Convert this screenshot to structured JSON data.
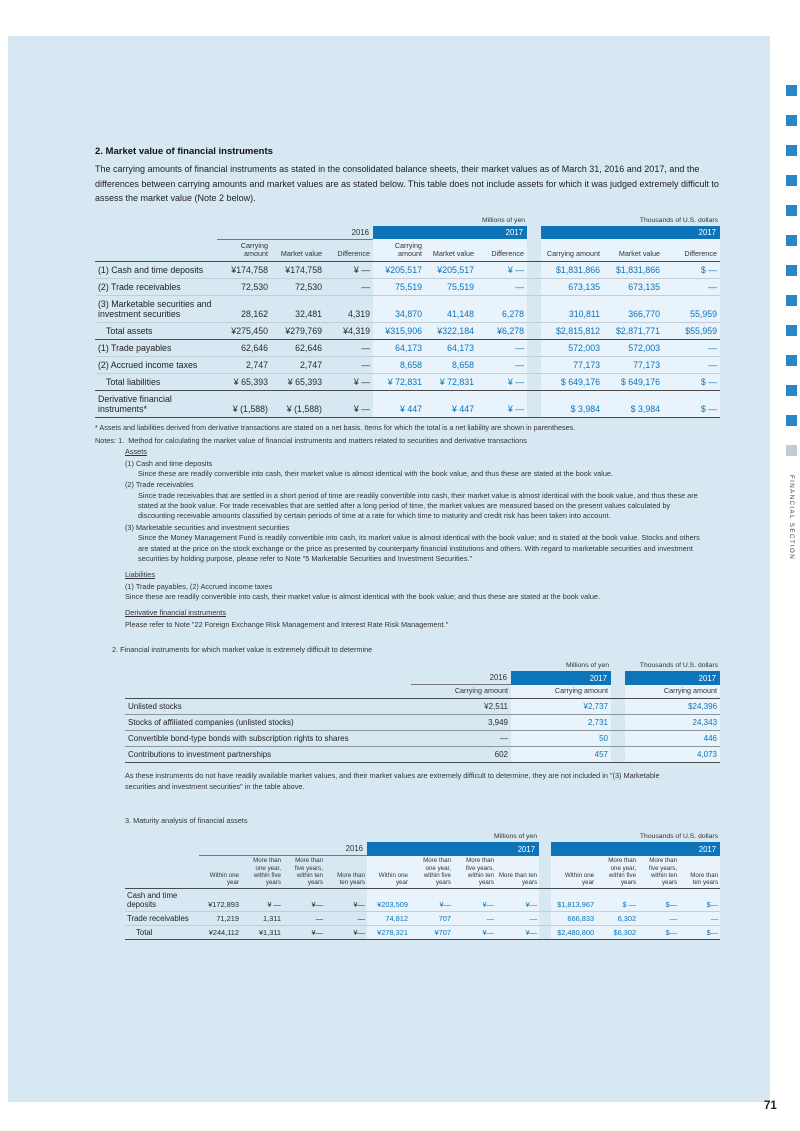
{
  "page": {
    "number": "71",
    "side_tab": "FINANCIAL SECTION"
  },
  "section": {
    "heading": "2. Market value of financial instruments",
    "intro": "The carrying amounts of financial instruments as stated in the consolidated balance sheets, their market values as of March 31, 2016 and 2017, and the differences between carrying amounts and market values are as stated below. This table does not include assets for which it was judged extremely difficult to assess the market value (Note 2 below)."
  },
  "table1": {
    "unit_yen": "Millions of yen",
    "unit_usd": "Thousands of U.S. dollars",
    "year_2016": "2016",
    "year_2017": "2017",
    "col_carrying": "Carrying amount",
    "col_market": "Market value",
    "col_difference": "Difference",
    "rows": [
      {
        "label": "(1) Cash and time deposits",
        "cells": [
          "¥174,758",
          "¥174,758",
          "¥ —",
          "¥205,517",
          "¥205,517",
          "¥ —",
          "$1,831,866",
          "$1,831,866",
          "$ —"
        ]
      },
      {
        "label": "(2) Trade receivables",
        "cells": [
          "72,530",
          "72,530",
          "—",
          "75,519",
          "75,519",
          "—",
          "673,135",
          "673,135",
          "—"
        ]
      },
      {
        "label": "(3) Marketable securities and investment securities",
        "cells": [
          "28,162",
          "32,481",
          "4,319",
          "34,870",
          "41,148",
          "6,278",
          "310,811",
          "366,770",
          "55,959"
        ]
      },
      {
        "label": "Total assets",
        "cls": "total",
        "ind": true,
        "cells": [
          "¥275,450",
          "¥279,769",
          "¥4,319",
          "¥315,906",
          "¥322,184",
          "¥6,278",
          "$2,815,812",
          "$2,871,771",
          "$55,959"
        ]
      },
      {
        "label": "(1) Trade payables",
        "cells": [
          "62,646",
          "62,646",
          "—",
          "64,173",
          "64,173",
          "—",
          "572,003",
          "572,003",
          "—"
        ]
      },
      {
        "label": "(2) Accrued income taxes",
        "cells": [
          "2,747",
          "2,747",
          "—",
          "8,658",
          "8,658",
          "—",
          "77,173",
          "77,173",
          "—"
        ]
      },
      {
        "label": "Total liabilities",
        "cls": "total",
        "ind": true,
        "cells": [
          "¥ 65,393",
          "¥ 65,393",
          "¥ —",
          "¥ 72,831",
          "¥ 72,831",
          "¥ —",
          "$ 649,176",
          "$ 649,176",
          "$ —"
        ]
      },
      {
        "label": "Derivative financial instruments*",
        "cls": "last",
        "cells": [
          "¥ (1,588)",
          "¥ (1,588)",
          "¥ —",
          "¥ 447",
          "¥ 447",
          "¥ —",
          "$ 3,984",
          "$ 3,984",
          "$ —"
        ]
      }
    ]
  },
  "notes": {
    "footnote": "* Assets and liabilities derived from derivative transactions are stated on a net basis. Items for which the total is a net liability are shown in parentheses.",
    "note1_prefix": "Notes: 1.",
    "note1_title": "Method for calculating the market value of financial instruments and matters related to securities and derivative transactions",
    "assets_heading": "Assets",
    "asset_items": [
      {
        "head": "(1) Cash and time deposits",
        "body": "Since these are readily convertible into cash, their market value is almost identical with the book value, and thus these are stated at the book value."
      },
      {
        "head": "(2) Trade receivables",
        "body": "Since trade receivables that are settled in a short period of time are readily convertible into cash, their market value is almost identical with the book value, and thus these are stated at the book value. For trade receivables that are settled after a long period of time, the market values are measured based on the present values calculated by discounting receivable amounts classified by certain periods of time at a rate for which time to maturity and credit risk has been taken into account."
      },
      {
        "head": "(3) Marketable securities and investment securities",
        "body": "Since the Money Management Fund is readily convertible into cash, its market value is almost identical with the book value; and is stated at the book value. Stocks and others are stated at the price on the stock exchange or the price as presented by counterparty financial institutions and others. With regard to marketable securities and investment securities by holding purpose, please refer to Note \"5 Marketable Securities and Investment Securities.\""
      }
    ],
    "liabilities_heading": "Liabilities",
    "liabilities_sub": "(1) Trade payables, (2) Accrued income taxes",
    "liabilities_body": "Since these are readily convertible into cash, their market value is almost identical with the book value; and thus these are stated at the book value.",
    "derivative_heading": "Derivative financial instruments",
    "derivative_body": "Please refer to Note \"22 Foreign Exchange Risk Management and Interest Rate Risk Management.\""
  },
  "table2": {
    "title": "2. Financial instruments for which market value is extremely difficult to determine",
    "unit_yen": "Millions of yen",
    "unit_usd": "Thousands of U.S. dollars",
    "year_2016": "2016",
    "year_2017": "2017",
    "col_carrying": "Carrying amount",
    "rows": [
      {
        "label": "Unlisted stocks",
        "cells": [
          "¥2,511",
          "¥2,737",
          "$24,396"
        ]
      },
      {
        "label": "Stocks of affiliated companies (unlisted stocks)",
        "cells": [
          "3,949",
          "2,731",
          "24,343"
        ]
      },
      {
        "label": "Convertible bond-type bonds with subscription rights to shares",
        "cells": [
          "—",
          "50",
          "446"
        ]
      },
      {
        "label": "Contributions to investment partnerships",
        "cls": "last",
        "cells": [
          "602",
          "457",
          "4,073"
        ]
      }
    ],
    "note": "As these instruments do not have readily available market values, and their market values are extremely difficult to determine, they are not included in \"(3) Marketable securities and investment securities\" in the table above."
  },
  "table3": {
    "title": "3. Maturity analysis of financial assets",
    "unit_yen": "Millions of yen",
    "unit_usd": "Thousands of U.S. dollars",
    "year_2016": "2016",
    "year_2017": "2017",
    "col_within_one": "Within one year",
    "col_one_five": "More than one year, within five years",
    "col_five_ten": "More than five years, within ten years",
    "col_over_ten": "More than ten years",
    "rows": [
      {
        "label": "Cash and time deposits",
        "cells": [
          "¥172,893",
          "¥ —",
          "¥—",
          "¥—",
          "¥203,509",
          "¥—",
          "¥—",
          "¥—",
          "$1,813,967",
          "$ —",
          "$—",
          "$—"
        ]
      },
      {
        "label": "Trade receivables",
        "cells": [
          "71,219",
          "1,311",
          "—",
          "—",
          "74,812",
          "707",
          "—",
          "—",
          "666,833",
          "6,302",
          "—",
          "—"
        ]
      },
      {
        "label": "Total",
        "cls": "total",
        "ind": true,
        "cells": [
          "¥244,112",
          "¥1,311",
          "¥—",
          "¥—",
          "¥278,321",
          "¥707",
          "¥—",
          "¥—",
          "$2,480,800",
          "$6,302",
          "$—",
          "$—"
        ]
      }
    ]
  }
}
